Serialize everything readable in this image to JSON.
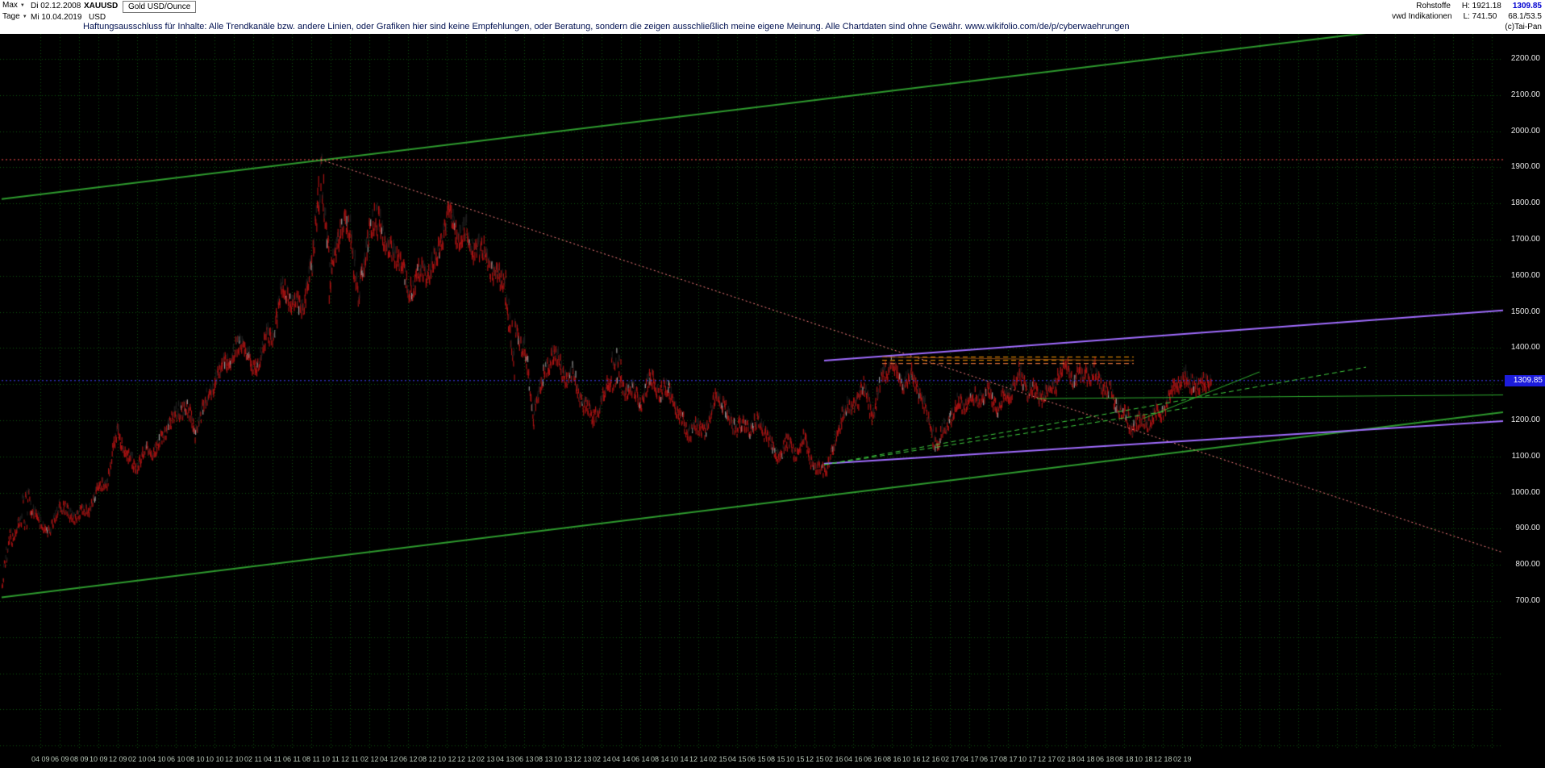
{
  "header": {
    "range_select": {
      "label": "Max"
    },
    "period_select": {
      "label": "Tage"
    },
    "date_from": "Di 02.12.2008",
    "date_to": "Mi 10.04.2019",
    "symbol": "XAUUSD",
    "currency": "USD",
    "instrument": "Gold USD/Ounce",
    "disclaimer": "Haftungsausschluss für Inhalte: Alle Trendkanäle bzw. andere Linien, oder Grafiken hier sind keine Empfehlungen, oder Beratung, sondern die zeigen ausschließlich meine eigene Meinung. Alle Chartdaten sind ohne Gewähr.   www.wikifolio.com/de/p/cyberwaehrungen",
    "right": {
      "category": "Rohstoffe",
      "high_label": "H: 1921.18",
      "last_price": "1309.85",
      "feed": "vwd Indikationen",
      "low_label": "L: 741.50",
      "indicator_values": "68.1/53.5",
      "copyright": "(c)Tai-Pan"
    }
  },
  "axis": {
    "y_labels": [
      "2200.00",
      "2100.00",
      "2000.00",
      "1900.00",
      "1800.00",
      "1700.00",
      "1600.00",
      "1500.00",
      "1400.00",
      "1200.00",
      "1100.00",
      "1000.00",
      "900.00",
      "800.00",
      "700.00"
    ],
    "current_price": "1309.85",
    "x_labels": [
      "04 09",
      "06 09",
      "08 09",
      "10 09",
      "12 09",
      "02 10",
      "04 10",
      "06 10",
      "08 10",
      "10 10",
      "12 10",
      "02 11",
      "04 11",
      "06 11",
      "08 11",
      "10 11",
      "12 11",
      "02 12",
      "04 12",
      "06 12",
      "08 12",
      "10 12",
      "12 12",
      "02 13",
      "04 13",
      "06 13",
      "08 13",
      "10 13",
      "12 13",
      "02 14",
      "04 14",
      "06 14",
      "08 14",
      "10 14",
      "12 14",
      "02 15",
      "04 15",
      "06 15",
      "08 15",
      "10 15",
      "12 15",
      "02 16",
      "04 16",
      "06 16",
      "08 16",
      "10 16",
      "12 16",
      "02 17",
      "04 17",
      "06 17",
      "08 17",
      "10 17",
      "12 17",
      "02 18",
      "04 18",
      "06 18",
      "08 18",
      "10 18",
      "12 18",
      "02 19"
    ]
  },
  "chart_data": {
    "type": "candlestick",
    "title": "Gold USD/Ounce",
    "symbol": "XAUUSD",
    "period": "Tage (daily)",
    "x_range": [
      "2008-12-02",
      "2019-04-10"
    ],
    "y_axis": {
      "min_label": 700,
      "max_label": 2200,
      "step": 100,
      "unit": "USD"
    },
    "period_high": 1921.18,
    "period_low": 741.5,
    "last": 1309.85,
    "grid_color": "#0d520d",
    "candle_colors": {
      "down": "#a81212",
      "up": "#1d1d1d",
      "highlight": "#9a9a9a"
    },
    "start_price": 776,
    "months": [
      [
        "2008-12",
        870
      ],
      [
        "2009-01",
        928
      ],
      [
        "2009-02",
        952
      ],
      [
        "2009-03",
        916
      ],
      [
        "2009-04",
        883
      ],
      [
        "2009-05",
        975
      ],
      [
        "2009-06",
        934
      ],
      [
        "2009-07",
        939
      ],
      [
        "2009-08",
        955
      ],
      [
        "2009-09",
        1008
      ],
      [
        "2009-10",
        1040
      ],
      [
        "2009-11",
        1175
      ],
      [
        "2009-12",
        1096
      ],
      [
        "2010-01",
        1078
      ],
      [
        "2010-02",
        1118
      ],
      [
        "2010-03",
        1113
      ],
      [
        "2010-04",
        1179
      ],
      [
        "2010-05",
        1215
      ],
      [
        "2010-06",
        1244
      ],
      [
        "2010-07",
        1169
      ],
      [
        "2010-08",
        1246
      ],
      [
        "2010-09",
        1307
      ],
      [
        "2010-10",
        1357
      ],
      [
        "2010-11",
        1383
      ],
      [
        "2010-12",
        1421
      ],
      [
        "2011-01",
        1327
      ],
      [
        "2011-02",
        1411
      ],
      [
        "2011-03",
        1439
      ],
      [
        "2011-04",
        1563
      ],
      [
        "2011-05",
        1536
      ],
      [
        "2011-06",
        1500
      ],
      [
        "2011-07",
        1628
      ],
      [
        "2011-08",
        1826
      ],
      [
        "2011-09",
        1620
      ],
      [
        "2011-10",
        1722
      ],
      [
        "2011-11",
        1746
      ],
      [
        "2011-12",
        1564
      ],
      [
        "2012-01",
        1737
      ],
      [
        "2012-02",
        1770
      ],
      [
        "2012-03",
        1668
      ],
      [
        "2012-04",
        1664
      ],
      [
        "2012-05",
        1558
      ],
      [
        "2012-06",
        1598
      ],
      [
        "2012-07",
        1615
      ],
      [
        "2012-08",
        1648
      ],
      [
        "2012-09",
        1771
      ],
      [
        "2012-10",
        1719
      ],
      [
        "2012-11",
        1715
      ],
      [
        "2012-12",
        1675
      ],
      [
        "2013-01",
        1661
      ],
      [
        "2013-02",
        1588
      ],
      [
        "2013-03",
        1597
      ],
      [
        "2013-04",
        1469
      ],
      [
        "2013-05",
        1394
      ],
      [
        "2013-06",
        1235
      ],
      [
        "2013-07",
        1312
      ],
      [
        "2013-08",
        1396
      ],
      [
        "2013-09",
        1327
      ],
      [
        "2013-10",
        1323
      ],
      [
        "2013-11",
        1253
      ],
      [
        "2013-12",
        1205
      ],
      [
        "2014-01",
        1244
      ],
      [
        "2014-02",
        1326
      ],
      [
        "2014-03",
        1291
      ],
      [
        "2014-04",
        1291
      ],
      [
        "2014-05",
        1250
      ],
      [
        "2014-06",
        1315
      ],
      [
        "2014-07",
        1282
      ],
      [
        "2014-08",
        1287
      ],
      [
        "2014-09",
        1208
      ],
      [
        "2014-10",
        1173
      ],
      [
        "2014-11",
        1175
      ],
      [
        "2014-12",
        1184
      ],
      [
        "2015-01",
        1283
      ],
      [
        "2015-02",
        1213
      ],
      [
        "2015-03",
        1183
      ],
      [
        "2015-04",
        1184
      ],
      [
        "2015-05",
        1190
      ],
      [
        "2015-06",
        1171
      ],
      [
        "2015-07",
        1095
      ],
      [
        "2015-08",
        1134
      ],
      [
        "2015-09",
        1115
      ],
      [
        "2015-10",
        1142
      ],
      [
        "2015-11",
        1065
      ],
      [
        "2015-12",
        1061
      ],
      [
        "2016-01",
        1118
      ],
      [
        "2016-02",
        1238
      ],
      [
        "2016-03",
        1232
      ],
      [
        "2016-04",
        1293
      ],
      [
        "2016-05",
        1215
      ],
      [
        "2016-06",
        1322
      ],
      [
        "2016-07",
        1351
      ],
      [
        "2016-08",
        1309
      ],
      [
        "2016-09",
        1316
      ],
      [
        "2016-10",
        1277
      ],
      [
        "2016-11",
        1173
      ],
      [
        "2016-12",
        1152
      ],
      [
        "2017-01",
        1211
      ],
      [
        "2017-02",
        1249
      ],
      [
        "2017-03",
        1249
      ],
      [
        "2017-04",
        1268
      ],
      [
        "2017-05",
        1269
      ],
      [
        "2017-06",
        1242
      ],
      [
        "2017-07",
        1269
      ],
      [
        "2017-08",
        1321
      ],
      [
        "2017-09",
        1280
      ],
      [
        "2017-10",
        1271
      ],
      [
        "2017-11",
        1275
      ],
      [
        "2017-12",
        1303
      ],
      [
        "2018-01",
        1345
      ],
      [
        "2018-02",
        1318
      ],
      [
        "2018-03",
        1325
      ],
      [
        "2018-04",
        1315
      ],
      [
        "2018-05",
        1298
      ],
      [
        "2018-06",
        1253
      ],
      [
        "2018-07",
        1224
      ],
      [
        "2018-08",
        1201
      ],
      [
        "2018-09",
        1192
      ],
      [
        "2018-10",
        1215
      ],
      [
        "2018-11",
        1222
      ],
      [
        "2018-12",
        1282
      ],
      [
        "2019-01",
        1321
      ],
      [
        "2019-02",
        1313
      ],
      [
        "2019-03",
        1292
      ],
      [
        "2019-04",
        1309.85
      ]
    ],
    "monthly_extremes": {
      "2008-12": [
        741.5,
        895
      ],
      "2009-02": [
        900,
        1006
      ],
      "2011-08": [
        1608,
        1913
      ],
      "2011-09": [
        1534,
        1921.18
      ],
      "2011-12": [
        1523,
        1763
      ],
      "2012-02": [
        1706,
        1790
      ],
      "2013-04": [
        1321,
        1605
      ],
      "2013-06": [
        1180,
        1424
      ],
      "2014-03": [
        1285,
        1392
      ],
      "2015-12": [
        1046,
        1088
      ],
      "2016-07": [
        1310,
        1375
      ],
      "2016-12": [
        1122,
        1178
      ],
      "2017-09": [
        1260,
        1357
      ],
      "2018-01": [
        1302,
        1366
      ],
      "2018-04": [
        1302,
        1365
      ],
      "2018-08": [
        1160,
        1235
      ],
      "2019-02": [
        1280,
        1346
      ]
    },
    "trendlines": [
      {
        "name": "upper-channel",
        "color": "#2e9b2e",
        "style": "solid",
        "width": 2,
        "from": [
          "2008-12",
          1812
        ],
        "to": [
          "2022-03",
          2330
        ]
      },
      {
        "name": "lower-channel",
        "color": "#2e9b2e",
        "style": "solid",
        "width": 2,
        "from": [
          "2008-12",
          710
        ],
        "to": [
          "2022-03",
          1235
        ]
      },
      {
        "name": "ath-resistance",
        "color": "#ff5050",
        "style": "dotted",
        "width": 1,
        "from": [
          "2008-12",
          1921.18
        ],
        "to": [
          "2022-03",
          1921.18
        ]
      },
      {
        "name": "downtrend-from-ath",
        "color": "#ff8080",
        "style": "dotted",
        "width": 1,
        "from": [
          "2011-09",
          1921
        ],
        "to": [
          "2022-03",
          800
        ]
      },
      {
        "name": "current-price-line",
        "color": "#4040ff",
        "style": "dotted",
        "width": 1,
        "from": [
          "2008-12",
          1309.85
        ],
        "to": [
          "2022-03",
          1309.85
        ]
      },
      {
        "name": "violet-upper",
        "color": "#a06cff",
        "style": "solid",
        "width": 2,
        "from": [
          "2016-01",
          1365
        ],
        "to": [
          "2022-03",
          1512
        ]
      },
      {
        "name": "violet-lower",
        "color": "#a06cff",
        "style": "solid",
        "width": 2,
        "from": [
          "2016-01",
          1080
        ],
        "to": [
          "2022-03",
          1204
        ]
      },
      {
        "name": "resistance-zone-1",
        "color": "#ff9900",
        "style": "dashed",
        "width": 1,
        "from": [
          "2016-07",
          1375
        ],
        "to": [
          "2018-09",
          1375
        ]
      },
      {
        "name": "resistance-zone-2",
        "color": "#ff9900",
        "style": "dashed",
        "width": 1,
        "from": [
          "2016-07",
          1366
        ],
        "to": [
          "2018-09",
          1366
        ]
      },
      {
        "name": "resistance-zone-3",
        "color": "#ff8040",
        "style": "dashed",
        "width": 1,
        "from": [
          "2016-07",
          1357
        ],
        "to": [
          "2018-09",
          1357
        ]
      },
      {
        "name": "highs-connector",
        "color": "#8a4a14",
        "style": "solid",
        "width": 1,
        "from": [
          "2016-07",
          1375
        ],
        "to": [
          "2018-09",
          1365
        ]
      },
      {
        "name": "support-trend-a",
        "color": "#3fcf3f",
        "style": "dashed",
        "width": 1,
        "from": [
          "2016-01",
          1077
        ],
        "to": [
          "2020-09",
          1347
        ]
      },
      {
        "name": "support-trend-b",
        "color": "#3fcf3f",
        "style": "dashed",
        "width": 1,
        "from": [
          "2016-01",
          1077
        ],
        "to": [
          "2019-03",
          1236
        ]
      },
      {
        "name": "short-uptrend",
        "color": "#2fae2f",
        "style": "solid",
        "width": 1,
        "from": [
          "2018-10",
          1205
        ],
        "to": [
          "2019-10",
          1334
        ]
      },
      {
        "name": "flat-support",
        "color": "#2fae2f",
        "style": "solid",
        "width": 1,
        "from": [
          "2017-11",
          1260
        ],
        "to": [
          "2022-03",
          1271
        ]
      }
    ]
  }
}
